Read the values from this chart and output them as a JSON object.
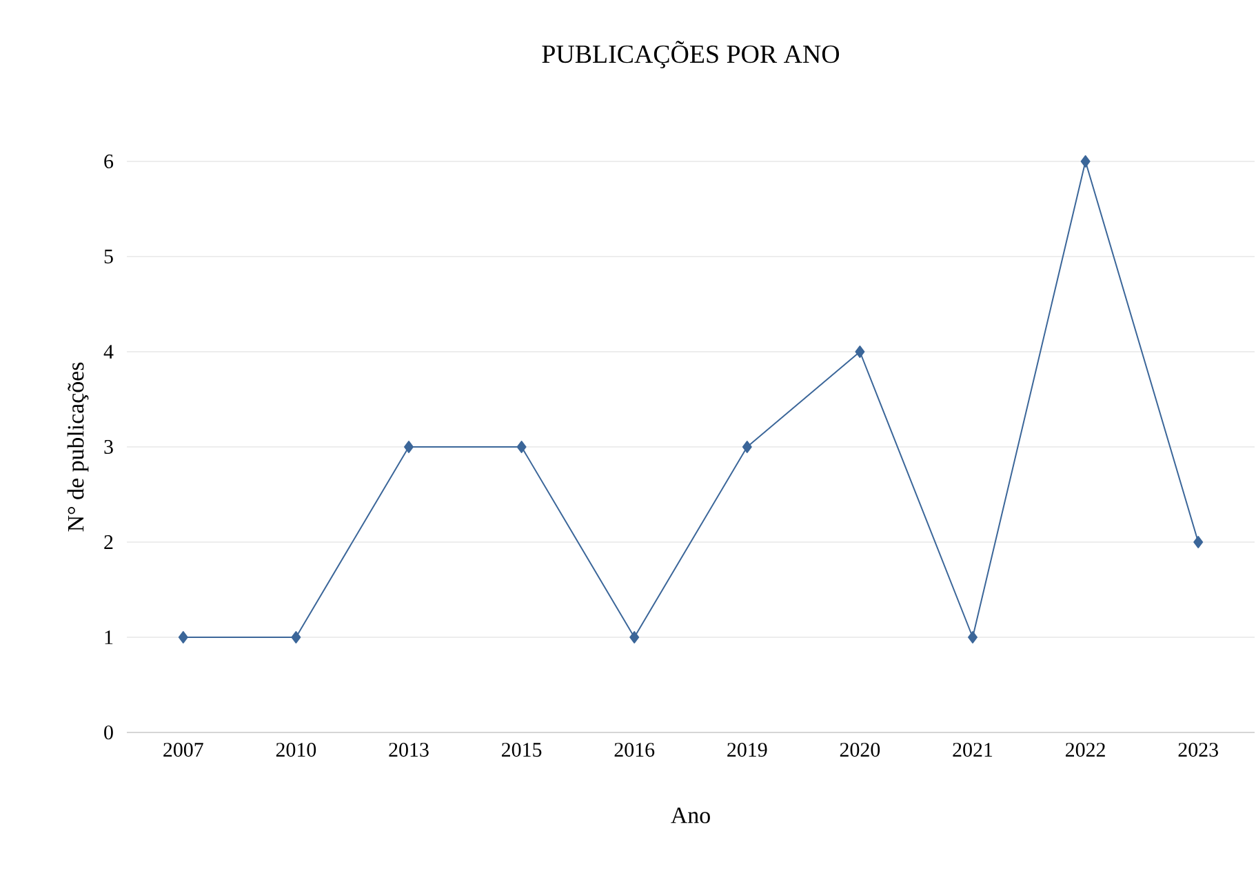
{
  "chart_data": {
    "type": "line",
    "title": "PUBLICAÇÕES POR ANO",
    "xlabel": "Ano",
    "ylabel": "N° de publicações",
    "categories": [
      "2007",
      "2010",
      "2013",
      "2015",
      "2016",
      "2019",
      "2020",
      "2021",
      "2022",
      "2023"
    ],
    "values": [
      1,
      1,
      3,
      3,
      1,
      3,
      4,
      1,
      6,
      2
    ],
    "color": "#3b6699",
    "ylim": [
      0,
      6
    ],
    "yticks": [
      0,
      1,
      2,
      3,
      4,
      5,
      6
    ],
    "grid": "y",
    "marker": "diamond",
    "line_style": "solid"
  }
}
